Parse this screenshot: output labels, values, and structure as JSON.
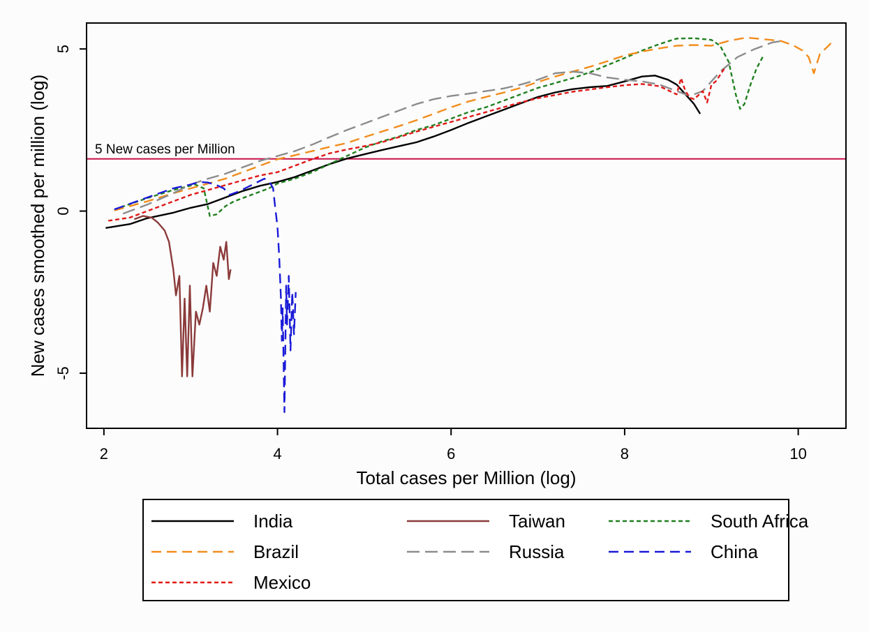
{
  "chart_data": {
    "type": "line",
    "title": "",
    "xlabel": "Total cases per Million (log)",
    "ylabel": "New cases smoothed per million (log)",
    "xlim": [
      1.8,
      10.55
    ],
    "ylim": [
      -6.7,
      5.8
    ],
    "xticks": [
      2,
      4,
      6,
      8,
      10
    ],
    "yticks": [
      -5,
      0,
      5
    ],
    "grid": false,
    "legend_position": "bottom",
    "reference_line": {
      "y": 1.6094,
      "label": "5 New cases per Million",
      "color": "#c8104a"
    },
    "series": [
      {
        "name": "India",
        "color": "#000000",
        "dash": "none",
        "points": [
          [
            2.02,
            -0.52
          ],
          [
            2.3,
            -0.4
          ],
          [
            2.5,
            -0.22
          ],
          [
            2.8,
            -0.05
          ],
          [
            3.0,
            0.1
          ],
          [
            3.2,
            0.22
          ],
          [
            3.4,
            0.42
          ],
          [
            3.6,
            0.62
          ],
          [
            3.8,
            0.78
          ],
          [
            4.0,
            0.9
          ],
          [
            4.2,
            1.05
          ],
          [
            4.4,
            1.25
          ],
          [
            4.6,
            1.45
          ],
          [
            4.8,
            1.62
          ],
          [
            5.0,
            1.75
          ],
          [
            5.2,
            1.88
          ],
          [
            5.4,
            2.0
          ],
          [
            5.6,
            2.12
          ],
          [
            5.8,
            2.3
          ],
          [
            6.0,
            2.5
          ],
          [
            6.2,
            2.72
          ],
          [
            6.4,
            2.92
          ],
          [
            6.6,
            3.12
          ],
          [
            6.8,
            3.32
          ],
          [
            7.0,
            3.52
          ],
          [
            7.2,
            3.66
          ],
          [
            7.4,
            3.76
          ],
          [
            7.6,
            3.82
          ],
          [
            7.8,
            3.86
          ],
          [
            8.0,
            4.0
          ],
          [
            8.2,
            4.15
          ],
          [
            8.35,
            4.18
          ],
          [
            8.5,
            4.05
          ],
          [
            8.6,
            3.9
          ],
          [
            8.7,
            3.6
          ],
          [
            8.75,
            3.45
          ],
          [
            8.8,
            3.3
          ],
          [
            8.87,
            3.0
          ]
        ]
      },
      {
        "name": "Taiwan",
        "color": "#8b3a3a",
        "dash": "none",
        "points": [
          [
            2.35,
            -0.25
          ],
          [
            2.45,
            -0.15
          ],
          [
            2.55,
            -0.2
          ],
          [
            2.62,
            -0.35
          ],
          [
            2.7,
            -0.6
          ],
          [
            2.75,
            -0.95
          ],
          [
            2.8,
            -1.8
          ],
          [
            2.83,
            -2.6
          ],
          [
            2.87,
            -2.0
          ],
          [
            2.9,
            -5.1
          ],
          [
            2.93,
            -2.7
          ],
          [
            2.96,
            -5.1
          ],
          [
            2.99,
            -2.3
          ],
          [
            3.02,
            -5.1
          ],
          [
            3.06,
            -3.1
          ],
          [
            3.1,
            -3.5
          ],
          [
            3.14,
            -3.0
          ],
          [
            3.18,
            -2.3
          ],
          [
            3.22,
            -3.1
          ],
          [
            3.26,
            -1.6
          ],
          [
            3.3,
            -2.0
          ],
          [
            3.34,
            -1.1
          ],
          [
            3.38,
            -1.5
          ],
          [
            3.41,
            -0.95
          ],
          [
            3.44,
            -2.1
          ],
          [
            3.46,
            -1.8
          ]
        ]
      },
      {
        "name": "South Africa",
        "color": "#208020",
        "dash": "6,4",
        "points": [
          [
            2.12,
            0.05
          ],
          [
            2.5,
            0.4
          ],
          [
            2.8,
            0.65
          ],
          [
            3.05,
            0.82
          ],
          [
            3.15,
            0.7
          ],
          [
            3.22,
            -0.15
          ],
          [
            3.3,
            -0.1
          ],
          [
            3.4,
            0.15
          ],
          [
            3.5,
            0.3
          ],
          [
            3.6,
            0.4
          ],
          [
            3.7,
            0.5
          ],
          [
            3.8,
            0.6
          ],
          [
            3.9,
            0.7
          ],
          [
            4.0,
            0.85
          ],
          [
            4.2,
            1.0
          ],
          [
            4.4,
            1.2
          ],
          [
            4.6,
            1.45
          ],
          [
            4.8,
            1.7
          ],
          [
            5.0,
            1.95
          ],
          [
            5.2,
            2.15
          ],
          [
            5.4,
            2.3
          ],
          [
            5.6,
            2.5
          ],
          [
            5.8,
            2.65
          ],
          [
            6.0,
            2.85
          ],
          [
            6.2,
            3.05
          ],
          [
            6.4,
            3.2
          ],
          [
            6.6,
            3.4
          ],
          [
            6.8,
            3.6
          ],
          [
            7.0,
            3.8
          ],
          [
            7.2,
            3.95
          ],
          [
            7.4,
            4.1
          ],
          [
            7.6,
            4.28
          ],
          [
            7.8,
            4.5
          ],
          [
            8.0,
            4.72
          ],
          [
            8.2,
            4.95
          ],
          [
            8.4,
            5.15
          ],
          [
            8.6,
            5.32
          ],
          [
            8.8,
            5.33
          ],
          [
            9.0,
            5.28
          ],
          [
            9.1,
            5.1
          ],
          [
            9.2,
            4.6
          ],
          [
            9.28,
            3.6
          ],
          [
            9.33,
            3.15
          ],
          [
            9.38,
            3.3
          ],
          [
            9.45,
            3.9
          ],
          [
            9.52,
            4.4
          ],
          [
            9.6,
            4.8
          ]
        ]
      },
      {
        "name": "Brazil",
        "color": "#f28c1c",
        "dash": "14,8",
        "points": [
          [
            2.12,
            0.02
          ],
          [
            2.5,
            0.3
          ],
          [
            2.8,
            0.55
          ],
          [
            3.0,
            0.7
          ],
          [
            3.2,
            0.85
          ],
          [
            3.4,
            1.0
          ],
          [
            3.6,
            1.2
          ],
          [
            3.8,
            1.4
          ],
          [
            4.0,
            1.6
          ],
          [
            4.2,
            1.72
          ],
          [
            4.4,
            1.85
          ],
          [
            4.6,
            1.98
          ],
          [
            4.8,
            2.1
          ],
          [
            5.0,
            2.28
          ],
          [
            5.2,
            2.45
          ],
          [
            5.4,
            2.62
          ],
          [
            5.6,
            2.8
          ],
          [
            5.8,
            3.0
          ],
          [
            6.0,
            3.2
          ],
          [
            6.2,
            3.38
          ],
          [
            6.4,
            3.52
          ],
          [
            6.6,
            3.65
          ],
          [
            6.8,
            3.8
          ],
          [
            7.0,
            3.98
          ],
          [
            7.2,
            4.15
          ],
          [
            7.4,
            4.3
          ],
          [
            7.6,
            4.45
          ],
          [
            7.8,
            4.62
          ],
          [
            8.0,
            4.8
          ],
          [
            8.2,
            4.92
          ],
          [
            8.4,
            5.02
          ],
          [
            8.6,
            5.1
          ],
          [
            8.8,
            5.12
          ],
          [
            9.0,
            5.1
          ],
          [
            9.2,
            5.25
          ],
          [
            9.4,
            5.35
          ],
          [
            9.6,
            5.3
          ],
          [
            9.8,
            5.25
          ],
          [
            9.95,
            5.1
          ],
          [
            10.05,
            4.95
          ],
          [
            10.12,
            4.75
          ],
          [
            10.18,
            4.25
          ],
          [
            10.25,
            4.85
          ],
          [
            10.35,
            5.1
          ],
          [
            10.42,
            5.3
          ]
        ]
      },
      {
        "name": "Russia",
        "color": "#8c8c8c",
        "dash": "18,8",
        "points": [
          [
            2.22,
            -0.08
          ],
          [
            2.5,
            0.2
          ],
          [
            2.8,
            0.55
          ],
          [
            3.0,
            0.82
          ],
          [
            3.2,
            1.0
          ],
          [
            3.4,
            1.15
          ],
          [
            3.6,
            1.35
          ],
          [
            3.8,
            1.55
          ],
          [
            4.0,
            1.7
          ],
          [
            4.2,
            1.85
          ],
          [
            4.4,
            2.05
          ],
          [
            4.6,
            2.28
          ],
          [
            4.8,
            2.5
          ],
          [
            5.0,
            2.7
          ],
          [
            5.2,
            2.9
          ],
          [
            5.4,
            3.1
          ],
          [
            5.6,
            3.3
          ],
          [
            5.8,
            3.45
          ],
          [
            6.0,
            3.55
          ],
          [
            6.2,
            3.62
          ],
          [
            6.4,
            3.7
          ],
          [
            6.6,
            3.78
          ],
          [
            6.8,
            3.9
          ],
          [
            7.0,
            4.05
          ],
          [
            7.2,
            4.25
          ],
          [
            7.4,
            4.3
          ],
          [
            7.6,
            4.25
          ],
          [
            7.8,
            4.12
          ],
          [
            8.0,
            4.05
          ],
          [
            8.2,
            4.0
          ],
          [
            8.4,
            3.9
          ],
          [
            8.6,
            3.7
          ],
          [
            8.75,
            3.55
          ],
          [
            8.9,
            3.7
          ],
          [
            9.1,
            4.3
          ],
          [
            9.3,
            4.75
          ],
          [
            9.5,
            5.0
          ],
          [
            9.7,
            5.2
          ],
          [
            9.82,
            5.25
          ]
        ]
      },
      {
        "name": "China",
        "color": "#1a1ad8",
        "dash": "14,8",
        "points": [
          [
            2.12,
            0.05
          ],
          [
            2.5,
            0.42
          ],
          [
            2.8,
            0.7
          ],
          [
            3.0,
            0.82
          ],
          [
            3.1,
            0.9
          ],
          [
            3.2,
            0.88
          ],
          [
            3.3,
            0.8
          ],
          [
            3.38,
            0.7
          ],
          [
            3.45,
            0.5
          ],
          [
            3.55,
            0.6
          ],
          [
            3.7,
            0.8
          ],
          [
            3.85,
            1.0
          ],
          [
            3.92,
            0.85
          ],
          [
            3.95,
            0.7
          ],
          [
            3.97,
            0.2
          ],
          [
            4.0,
            -0.5
          ],
          [
            4.02,
            -1.4
          ],
          [
            4.04,
            -2.7
          ],
          [
            4.05,
            -4.0
          ],
          [
            4.06,
            -3.0
          ],
          [
            4.08,
            -6.2
          ],
          [
            4.1,
            -2.3
          ],
          [
            4.11,
            -3.5
          ],
          [
            4.13,
            -2.0
          ],
          [
            4.15,
            -4.3
          ],
          [
            4.17,
            -2.5
          ],
          [
            4.19,
            -3.8
          ],
          [
            4.21,
            -2.5
          ]
        ]
      },
      {
        "name": "Mexico",
        "color": "#e01818",
        "dash": "6,4",
        "points": [
          [
            2.05,
            -0.3
          ],
          [
            2.3,
            -0.2
          ],
          [
            2.6,
            0.1
          ],
          [
            2.8,
            0.3
          ],
          [
            3.0,
            0.5
          ],
          [
            3.2,
            0.65
          ],
          [
            3.4,
            0.8
          ],
          [
            3.6,
            0.95
          ],
          [
            3.8,
            1.1
          ],
          [
            4.0,
            1.2
          ],
          [
            4.2,
            1.4
          ],
          [
            4.4,
            1.6
          ],
          [
            4.6,
            1.78
          ],
          [
            4.8,
            1.9
          ],
          [
            5.0,
            2.0
          ],
          [
            5.2,
            2.12
          ],
          [
            5.4,
            2.28
          ],
          [
            5.6,
            2.45
          ],
          [
            5.8,
            2.6
          ],
          [
            6.0,
            2.75
          ],
          [
            6.2,
            2.9
          ],
          [
            6.4,
            3.05
          ],
          [
            6.6,
            3.2
          ],
          [
            6.8,
            3.35
          ],
          [
            7.0,
            3.48
          ],
          [
            7.2,
            3.58
          ],
          [
            7.4,
            3.68
          ],
          [
            7.6,
            3.75
          ],
          [
            7.8,
            3.82
          ],
          [
            8.0,
            3.88
          ],
          [
            8.2,
            3.92
          ],
          [
            8.4,
            3.85
          ],
          [
            8.6,
            3.6
          ],
          [
            8.65,
            4.1
          ],
          [
            8.7,
            3.7
          ],
          [
            8.75,
            3.5
          ],
          [
            8.8,
            3.45
          ],
          [
            8.9,
            3.7
          ],
          [
            8.95,
            3.35
          ],
          [
            9.0,
            3.9
          ],
          [
            9.05,
            4.0
          ],
          [
            9.1,
            4.2
          ],
          [
            9.15,
            4.4
          ]
        ]
      }
    ]
  }
}
